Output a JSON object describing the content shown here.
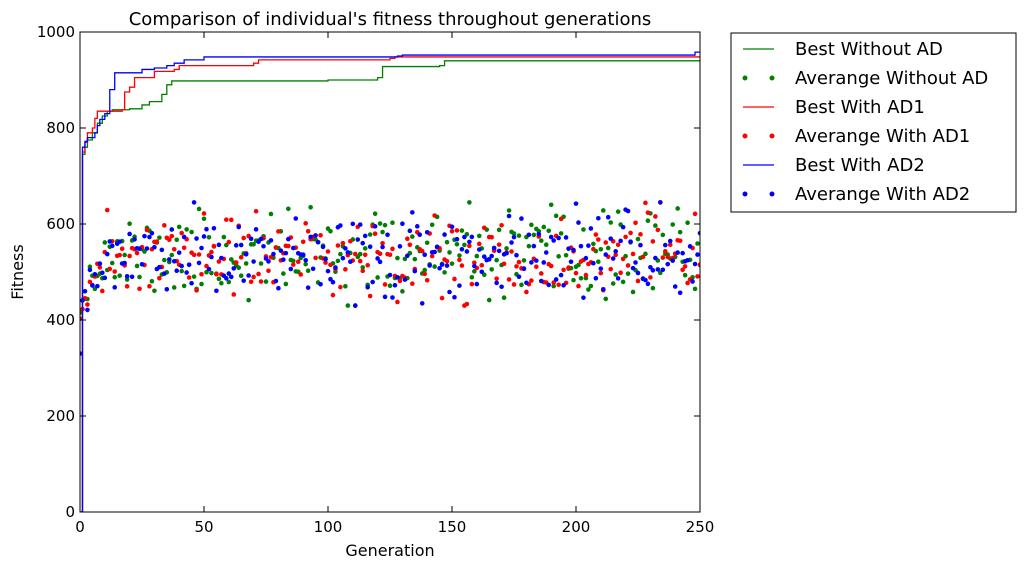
{
  "chart_data": {
    "type": "line",
    "title": "Comparison of individual's fitness throughout generations",
    "xlabel": "Generation",
    "ylabel": "Fitness",
    "xlim": [
      0,
      250
    ],
    "ylim": [
      0,
      1000
    ],
    "xticks": [
      0,
      50,
      100,
      150,
      200,
      250
    ],
    "yticks": [
      0,
      200,
      400,
      600,
      800,
      1000
    ],
    "grid": false,
    "legend_position": "outside-top-right",
    "series": [
      {
        "name": "Best Without AD",
        "style": "line",
        "color": "#008000",
        "points": [
          [
            0,
            0
          ],
          [
            1,
            745
          ],
          [
            2,
            760
          ],
          [
            3,
            775
          ],
          [
            5,
            790
          ],
          [
            7,
            810
          ],
          [
            9,
            825
          ],
          [
            11,
            835
          ],
          [
            13,
            838
          ],
          [
            20,
            840
          ],
          [
            25,
            848
          ],
          [
            28,
            855
          ],
          [
            33,
            870
          ],
          [
            35,
            890
          ],
          [
            37,
            898
          ],
          [
            100,
            900
          ],
          [
            120,
            905
          ],
          [
            122,
            928
          ],
          [
            145,
            930
          ],
          [
            147,
            940
          ],
          [
            250,
            940
          ]
        ]
      },
      {
        "name": "Averange Without AD",
        "style": "points",
        "color": "#008000",
        "seed": 11,
        "mean": 532,
        "spread": 44
      },
      {
        "name": "Best With AD1",
        "style": "line",
        "color": "#ff0000",
        "points": [
          [
            0,
            0
          ],
          [
            1,
            750
          ],
          [
            2,
            770
          ],
          [
            3,
            790
          ],
          [
            5,
            800
          ],
          [
            6,
            820
          ],
          [
            7,
            835
          ],
          [
            17,
            838
          ],
          [
            18,
            875
          ],
          [
            20,
            885
          ],
          [
            22,
            905
          ],
          [
            30,
            918
          ],
          [
            38,
            922
          ],
          [
            40,
            930
          ],
          [
            70,
            935
          ],
          [
            72,
            942
          ],
          [
            125,
            945
          ],
          [
            127,
            948
          ],
          [
            250,
            950
          ]
        ]
      },
      {
        "name": "Averange With AD1",
        "style": "points",
        "color": "#ff0000",
        "seed": 23,
        "mean": 532,
        "spread": 44
      },
      {
        "name": "Best With AD2",
        "style": "line",
        "color": "#0000ff",
        "points": [
          [
            0,
            0
          ],
          [
            1,
            760
          ],
          [
            2,
            772
          ],
          [
            3,
            780
          ],
          [
            6,
            790
          ],
          [
            7,
            805
          ],
          [
            8,
            818
          ],
          [
            10,
            830
          ],
          [
            12,
            880
          ],
          [
            14,
            915
          ],
          [
            25,
            922
          ],
          [
            30,
            925
          ],
          [
            35,
            930
          ],
          [
            38,
            935
          ],
          [
            42,
            942
          ],
          [
            50,
            948
          ],
          [
            128,
            950
          ],
          [
            130,
            952
          ],
          [
            247,
            952
          ],
          [
            248,
            958
          ],
          [
            250,
            958
          ]
        ]
      },
      {
        "name": "Averange With AD2",
        "style": "points",
        "color": "#0000ff",
        "seed": 37,
        "mean": 532,
        "spread": 46
      }
    ]
  }
}
